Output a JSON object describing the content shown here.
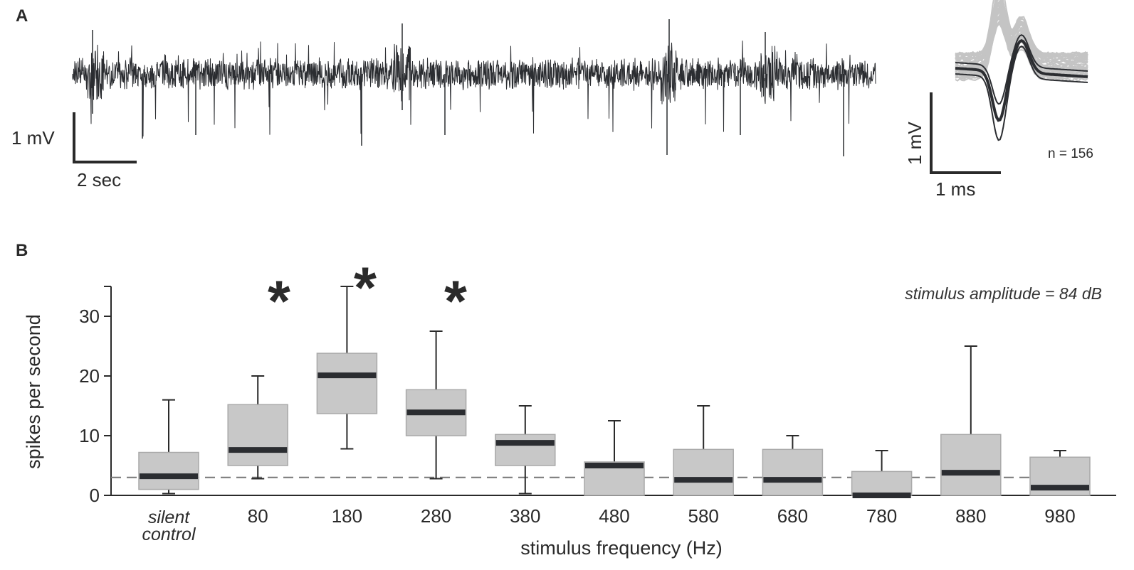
{
  "panels": {
    "a_label": "A",
    "b_label": "B"
  },
  "trace_panel": {
    "voltage_scale_label": "1 mV",
    "time_scale_label": "2 sec",
    "trace_color": "#2b2d31"
  },
  "waveform_panel": {
    "voltage_scale_label": "1 mV",
    "time_scale_label": "1 ms",
    "n_label": "n = 156",
    "individual_color": "#c4c4c4",
    "mean_color": "#2b2d31"
  },
  "chart_data": {
    "type": "box",
    "title": "",
    "annotation": "stimulus amplitude = 84 dB",
    "xlabel": "stimulus frequency (Hz)",
    "ylabel": "spikes per second",
    "ylim": [
      0,
      35
    ],
    "yticks": [
      0,
      10,
      20,
      30
    ],
    "grid": false,
    "reference_line": {
      "value": 3,
      "style": "dashed"
    },
    "box_color": "#c8c8c8",
    "median_color": "#2b2d31",
    "categories": [
      "silent control",
      "80",
      "180",
      "280",
      "380",
      "480",
      "580",
      "680",
      "780",
      "880",
      "980"
    ],
    "boxes": [
      {
        "category": "silent control",
        "whisker_low": 0.3,
        "q1": 1.0,
        "median": 3.2,
        "q3": 7.2,
        "whisker_high": 16.0,
        "significant": false
      },
      {
        "category": "80",
        "whisker_low": 2.8,
        "q1": 5.0,
        "median": 7.6,
        "q3": 15.2,
        "whisker_high": 20.0,
        "significant": true
      },
      {
        "category": "180",
        "whisker_low": 7.8,
        "q1": 13.7,
        "median": 20.1,
        "q3": 23.8,
        "whisker_high": 35.0,
        "significant": true
      },
      {
        "category": "280",
        "whisker_low": 2.8,
        "q1": 10.0,
        "median": 13.9,
        "q3": 17.7,
        "whisker_high": 27.5,
        "significant": true
      },
      {
        "category": "380",
        "whisker_low": 0.3,
        "q1": 5.0,
        "median": 8.8,
        "q3": 10.2,
        "whisker_high": 15.0,
        "significant": false
      },
      {
        "category": "480",
        "whisker_low": 0.0,
        "q1": 0.0,
        "median": 5.0,
        "q3": 5.6,
        "whisker_high": 12.5,
        "significant": false
      },
      {
        "category": "580",
        "whisker_low": 0.0,
        "q1": 0.0,
        "median": 2.6,
        "q3": 7.7,
        "whisker_high": 15.0,
        "significant": false
      },
      {
        "category": "680",
        "whisker_low": 0.0,
        "q1": 0.0,
        "median": 2.6,
        "q3": 7.7,
        "whisker_high": 10.0,
        "significant": false
      },
      {
        "category": "780",
        "whisker_low": 0.0,
        "q1": 0.0,
        "median": 0.0,
        "q3": 4.0,
        "whisker_high": 7.5,
        "significant": false
      },
      {
        "category": "880",
        "whisker_low": 0.0,
        "q1": 0.0,
        "median": 3.8,
        "q3": 10.2,
        "whisker_high": 25.0,
        "significant": false
      },
      {
        "category": "980",
        "whisker_low": 0.0,
        "q1": 0.0,
        "median": 1.3,
        "q3": 6.4,
        "whisker_high": 7.5,
        "significant": false
      }
    ],
    "category_labels": [
      "",
      "80",
      "180",
      "280",
      "380",
      "480",
      "580",
      "680",
      "780",
      "880",
      "980"
    ],
    "control_label_lines": [
      "silent",
      "control"
    ],
    "significance_marker": "*"
  }
}
